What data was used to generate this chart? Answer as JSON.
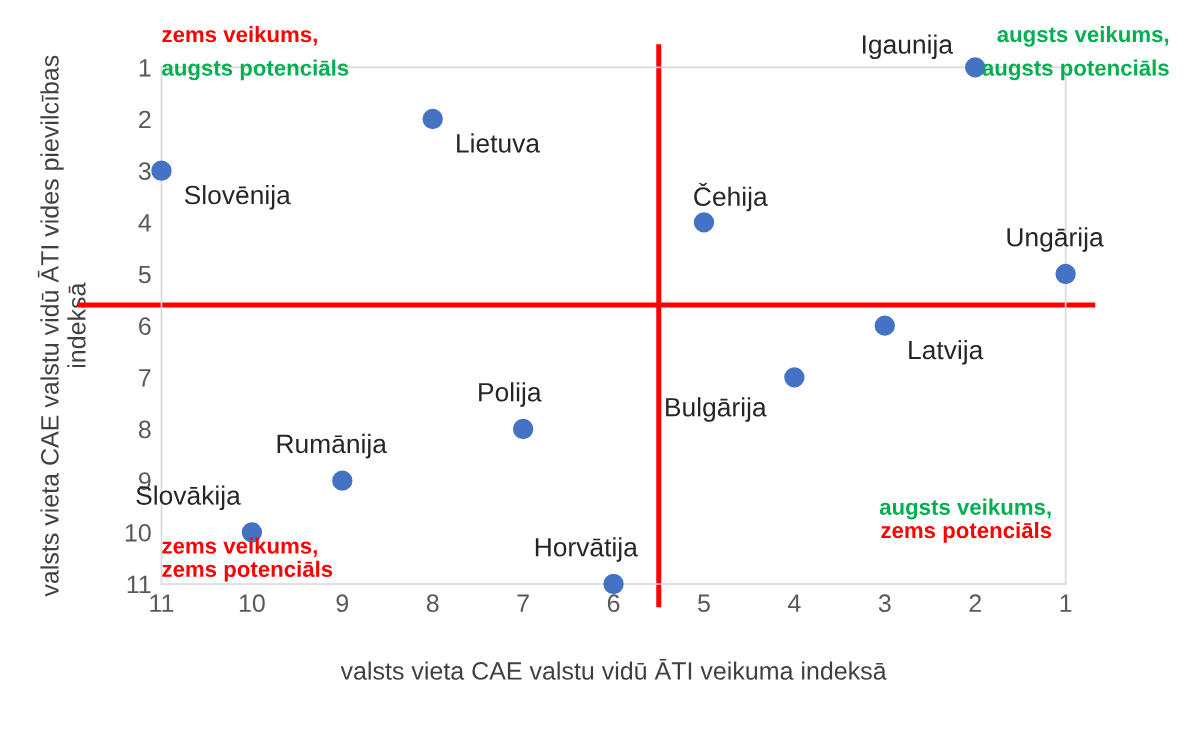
{
  "chart_data": {
    "type": "scatter",
    "xlabel": "valsts vieta CAE valstu vidū ĀTI veikuma indeksā",
    "ylabel": "valsts vieta CAE valstu vidū ĀTI vides pievilcības\nindeksā",
    "x": [
      2,
      8,
      11,
      5,
      1,
      3,
      4,
      7,
      9,
      10,
      6
    ],
    "series": [
      {
        "color": "#4472c4",
        "values": [
          1,
          2,
          3,
          4,
          5,
          6,
          7,
          8,
          9,
          10,
          11
        ]
      }
    ],
    "marker": "circle",
    "xlim": [
      11,
      1
    ],
    "ylim": [
      11,
      1
    ],
    "xticks": [
      11,
      10,
      9,
      8,
      7,
      6,
      5,
      4,
      3,
      2,
      1
    ],
    "yticks": [
      1,
      2,
      3,
      4,
      5,
      6,
      7,
      8,
      9,
      10,
      11
    ],
    "grid": false,
    "legend": false,
    "ref_lines": [
      {
        "axis": "x",
        "value": 5.5,
        "color": "#ff0000"
      },
      {
        "axis": "y",
        "value": 5.6,
        "color": "#ff0000"
      }
    ],
    "annotations": [
      {
        "text": "Igaunija",
        "x": 2,
        "y": 1
      },
      {
        "text": "Lietuva",
        "x": 8,
        "y": 2
      },
      {
        "text": "Slovēnija",
        "x": 11,
        "y": 3
      },
      {
        "text": "Čehija",
        "x": 5,
        "y": 4
      },
      {
        "text": "Ungārija",
        "x": 1,
        "y": 5
      },
      {
        "text": "Latvija",
        "x": 3,
        "y": 6
      },
      {
        "text": "Bulgārija",
        "x": 4,
        "y": 7
      },
      {
        "text": "Polija",
        "x": 7,
        "y": 8
      },
      {
        "text": "Rumānija",
        "x": 9,
        "y": 9
      },
      {
        "text": "Slovākija",
        "x": 10,
        "y": 10
      },
      {
        "text": "Horvātija",
        "x": 6,
        "y": 11
      },
      "zems veikums,",
      "augsts potenciāls",
      "augsts veikums,",
      "augsts potenciāls",
      "augsts veikums,",
      "zems potenciāls",
      "zems veikums,",
      "zems potenciāls"
    ]
  }
}
